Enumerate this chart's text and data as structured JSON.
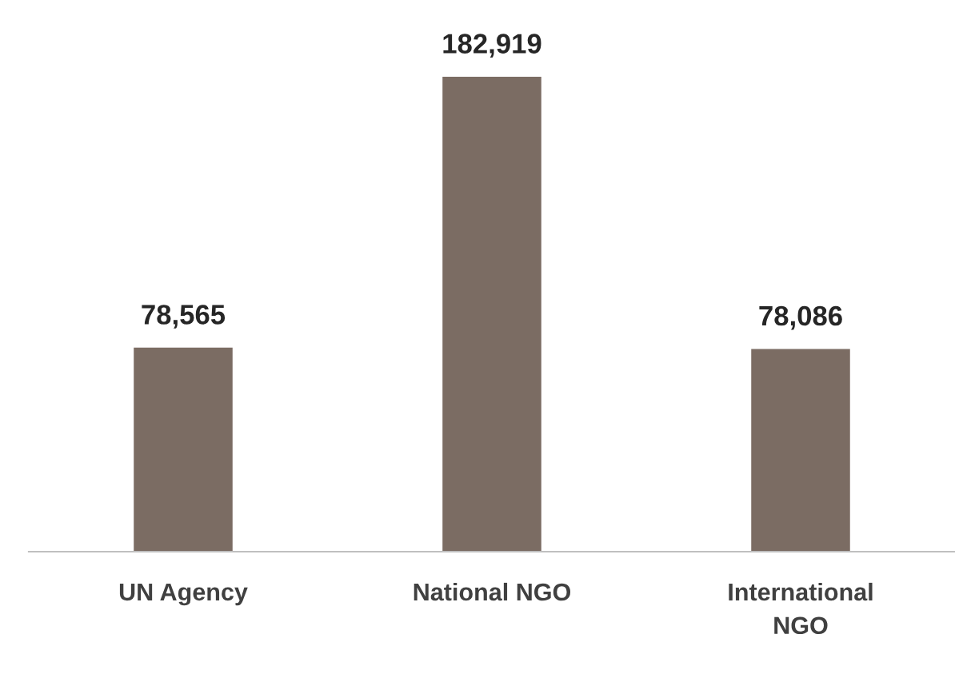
{
  "chart_data": {
    "type": "bar",
    "categories": [
      "UN Agency",
      "National NGO",
      "International\nNGO"
    ],
    "values": [
      78565,
      182919,
      78086
    ],
    "color": "#7b6c63",
    "value_labels": [
      "78,565",
      "182,919",
      "78,086"
    ],
    "grid": false,
    "legend": false
  }
}
